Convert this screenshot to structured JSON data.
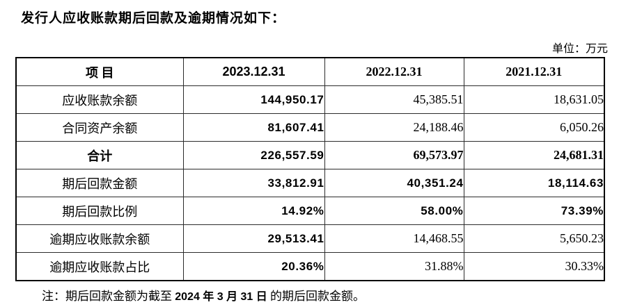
{
  "page": {
    "title": "发行人应收账款期后回款及逾期情况如下：",
    "unit_label": "单位：万元"
  },
  "table": {
    "headers": {
      "item": "项  目",
      "col2023": "2023.12.31",
      "col2022": "2022.12.31",
      "col2021": "2021.12.31"
    },
    "rows": [
      {
        "label": "应收账款余额",
        "v2023": "144,950.17",
        "v2022": "45,385.51",
        "v2021": "18,631.05"
      },
      {
        "label": "合同资产余额",
        "v2023": "81,607.41",
        "v2022": "24,188.46",
        "v2021": "6,050.26"
      },
      {
        "label": "合计",
        "v2023": "226,557.59",
        "v2022": "69,573.97",
        "v2021": "24,681.31"
      },
      {
        "label": "期后回款金额",
        "v2023": "33,812.91",
        "v2022": "40,351.24",
        "v2021": "18,114.63"
      },
      {
        "label": "期后回款比例",
        "v2023": "14.92%",
        "v2022": "58.00%",
        "v2021": "73.39%"
      },
      {
        "label": "逾期应收账款余额",
        "v2023": "29,513.41",
        "v2022": "14,468.55",
        "v2021": "5,650.23"
      },
      {
        "label": "逾期应收账款占比",
        "v2023": "20.36%",
        "v2022": "31.88%",
        "v2021": "30.33%"
      }
    ]
  },
  "footnote": {
    "prefix": "注：期后回款金额为截至 ",
    "date_bold": "2024 年 3 月 31 日",
    "suffix": " 的期后回款金额。"
  }
}
